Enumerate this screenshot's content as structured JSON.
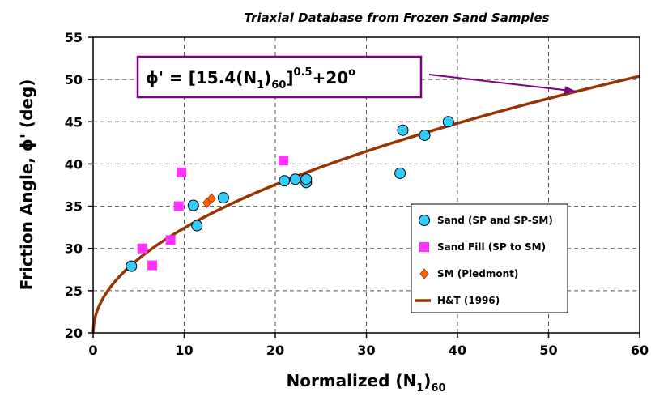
{
  "chart_data": {
    "type": "scatter",
    "title": "Triaxial Database from Frozen Sand Samples",
    "xlabel": {
      "main": "Normalized (N",
      "sub1": "1",
      "close": ")",
      "sub2": "60"
    },
    "ylabel": "Friction Angle, ϕ' (deg)",
    "xlim": [
      0,
      60
    ],
    "ylim": [
      20,
      55
    ],
    "xticks": [
      "0",
      "10",
      "20",
      "30",
      "40",
      "50",
      "60"
    ],
    "yticks": [
      "20",
      "25",
      "30",
      "35",
      "40",
      "45",
      "50",
      "55"
    ],
    "grid": true,
    "legend_position": "right",
    "equation": {
      "lhs": "ϕ' = [15.4(N",
      "sub1": "1",
      "mid": ")",
      "sub2": "60",
      "mid2": "]",
      "sup": "0.5",
      "rhs": "+20",
      "deg": "o"
    },
    "annotation_arrow_target": {
      "x": 53,
      "y": 48.6
    },
    "series": [
      {
        "name": "Sand (SP and SP-SM)",
        "marker": "circle",
        "color": "#33ccff",
        "points": [
          [
            4.2,
            27.9
          ],
          [
            11,
            35.1
          ],
          [
            11.4,
            32.7
          ],
          [
            14.3,
            36.0
          ],
          [
            21,
            38.0
          ],
          [
            22.2,
            38.2
          ],
          [
            23.4,
            37.8
          ],
          [
            23.4,
            38.2
          ],
          [
            33.7,
            38.9
          ],
          [
            34,
            44.0
          ],
          [
            36.4,
            43.4
          ],
          [
            39,
            45.0
          ]
        ]
      },
      {
        "name": "Sand Fill (SP to SM)",
        "marker": "square",
        "color": "#ff33ff",
        "points": [
          [
            5.4,
            30.0
          ],
          [
            6.5,
            28.0
          ],
          [
            8.5,
            31.0
          ],
          [
            9.4,
            35.0
          ],
          [
            9.7,
            39.0
          ],
          [
            20.9,
            40.4
          ]
        ]
      },
      {
        "name": "SM (Piedmont)",
        "marker": "diamond",
        "color": "#ff6600",
        "points": [
          [
            12.5,
            35.4
          ],
          [
            13.0,
            35.9
          ]
        ]
      },
      {
        "name": "H&T (1996)",
        "marker": "line",
        "color": "#993300",
        "formula": "sqrt(15.4*x)+20"
      }
    ]
  }
}
